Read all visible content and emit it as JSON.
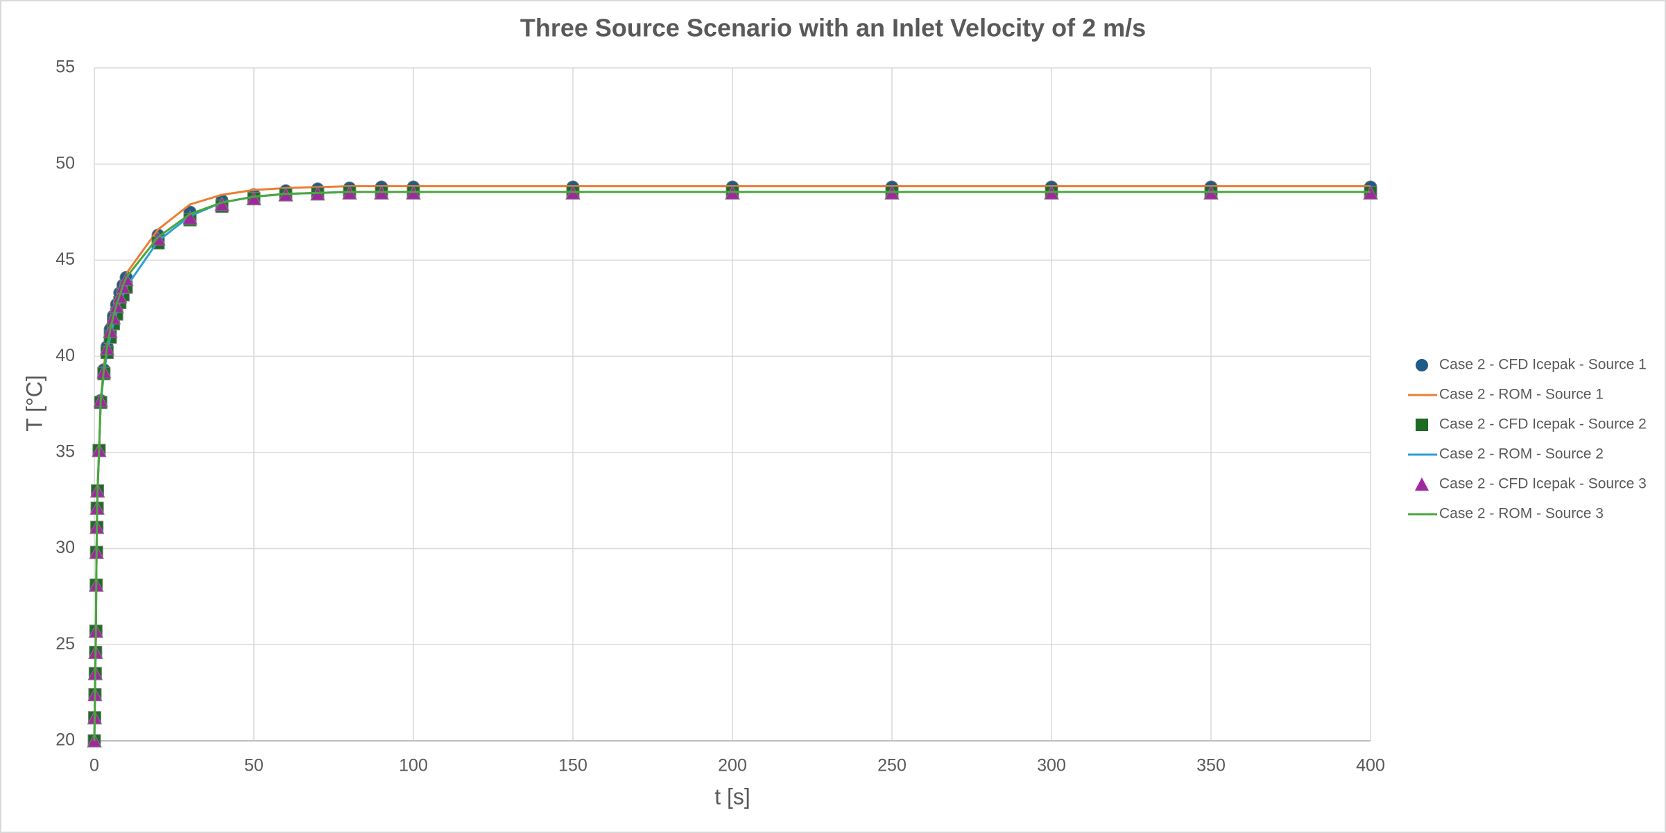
{
  "chart_data": {
    "type": "scatter",
    "title": "Three Source Scenario with an Inlet Velocity of 2 m/s",
    "x_label": "t [s]",
    "y_label": "T [°C]",
    "x": [
      0,
      0.1,
      0.2,
      0.3,
      0.4,
      0.5,
      0.6,
      0.7,
      0.8,
      0.9,
      1,
      1.5,
      2,
      3,
      4,
      5,
      6,
      7,
      8,
      9,
      10,
      20,
      30,
      40,
      50,
      60,
      70,
      80,
      90,
      100,
      150,
      200,
      250,
      300,
      350,
      400
    ],
    "series": [
      {
        "name": "Case 2 - CFD Icepak - Source 1",
        "color": "#1f5c87",
        "mode": "markers",
        "marker": "circle",
        "values": [
          20,
          21.2,
          22.4,
          23.5,
          24.6,
          25.7,
          28.1,
          29.8,
          31.1,
          32.1,
          33.0,
          35.1,
          37.7,
          39.3,
          40.5,
          41.4,
          42.1,
          42.7,
          43.3,
          43.7,
          44.1,
          46.3,
          47.5,
          48.1,
          48.4,
          48.6,
          48.7,
          48.75,
          48.8,
          48.8,
          48.8,
          48.8,
          48.8,
          48.8,
          48.8,
          48.8
        ]
      },
      {
        "name": "Case 2 - ROM - Source 1",
        "color": "#ed7d31",
        "mode": "line",
        "values": [
          20,
          21.2,
          22.4,
          23.5,
          24.6,
          25.7,
          28.1,
          29.8,
          31.1,
          32.1,
          33.0,
          35.1,
          37.7,
          39.5,
          40.7,
          41.6,
          42.3,
          42.9,
          43.5,
          43.9,
          44.3,
          46.6,
          47.9,
          48.4,
          48.65,
          48.75,
          48.8,
          48.85,
          48.85,
          48.85,
          48.85,
          48.85,
          48.85,
          48.85,
          48.85,
          48.85
        ]
      },
      {
        "name": "Case 2 - CFD Icepak - Source 2",
        "color": "#1e6b24",
        "mode": "markers",
        "marker": "square",
        "values": [
          20,
          21.2,
          22.4,
          23.5,
          24.6,
          25.7,
          28.1,
          29.8,
          31.1,
          32.1,
          33.0,
          35.1,
          37.6,
          39.1,
          40.2,
          41.0,
          41.7,
          42.2,
          42.8,
          43.2,
          43.6,
          45.9,
          47.1,
          47.8,
          48.2,
          48.4,
          48.45,
          48.5,
          48.5,
          48.5,
          48.5,
          48.5,
          48.5,
          48.5,
          48.5,
          48.5
        ]
      },
      {
        "name": "Case 2 - ROM - Source 2",
        "color": "#2aa0d8",
        "mode": "line",
        "values": [
          20,
          21.2,
          22.4,
          23.5,
          24.6,
          25.7,
          28.1,
          29.8,
          31.1,
          32.1,
          33.0,
          35.1,
          37.6,
          39.1,
          40.2,
          41.0,
          41.7,
          42.3,
          42.8,
          43.2,
          43.6,
          46.0,
          47.3,
          48.0,
          48.3,
          48.45,
          48.5,
          48.55,
          48.55,
          48.55,
          48.55,
          48.55,
          48.55,
          48.55,
          48.55,
          48.55
        ]
      },
      {
        "name": "Case 2 - CFD Icepak - Source 3",
        "color": "#a0289f",
        "mode": "markers",
        "marker": "triangle",
        "values": [
          20,
          21.2,
          22.4,
          23.5,
          24.6,
          25.7,
          28.1,
          29.8,
          31.1,
          32.1,
          33.0,
          35.1,
          37.7,
          39.2,
          40.4,
          41.3,
          42.0,
          42.6,
          43.1,
          43.6,
          44.0,
          46.1,
          47.2,
          47.9,
          48.2,
          48.4,
          48.45,
          48.5,
          48.5,
          48.5,
          48.5,
          48.5,
          48.5,
          48.5,
          48.5,
          48.5
        ]
      },
      {
        "name": "Case 2 - ROM - Source 3",
        "color": "#4aa63b",
        "mode": "line",
        "values": [
          20,
          21.2,
          22.4,
          23.5,
          24.6,
          25.7,
          28.1,
          29.8,
          31.1,
          32.1,
          33.0,
          35.1,
          37.7,
          39.3,
          40.5,
          41.4,
          42.1,
          42.7,
          43.2,
          43.7,
          44.1,
          46.2,
          47.4,
          48.0,
          48.3,
          48.45,
          48.5,
          48.55,
          48.55,
          48.55,
          48.55,
          48.55,
          48.55,
          48.55,
          48.55,
          48.55
        ]
      }
    ],
    "xlim": [
      0,
      400
    ],
    "xticks": [
      0,
      50,
      100,
      150,
      200,
      250,
      300,
      350,
      400
    ],
    "ylim": [
      20,
      55
    ],
    "yticks": [
      20,
      25,
      30,
      35,
      40,
      45,
      50,
      55
    ],
    "grid": true,
    "legend": "right"
  }
}
